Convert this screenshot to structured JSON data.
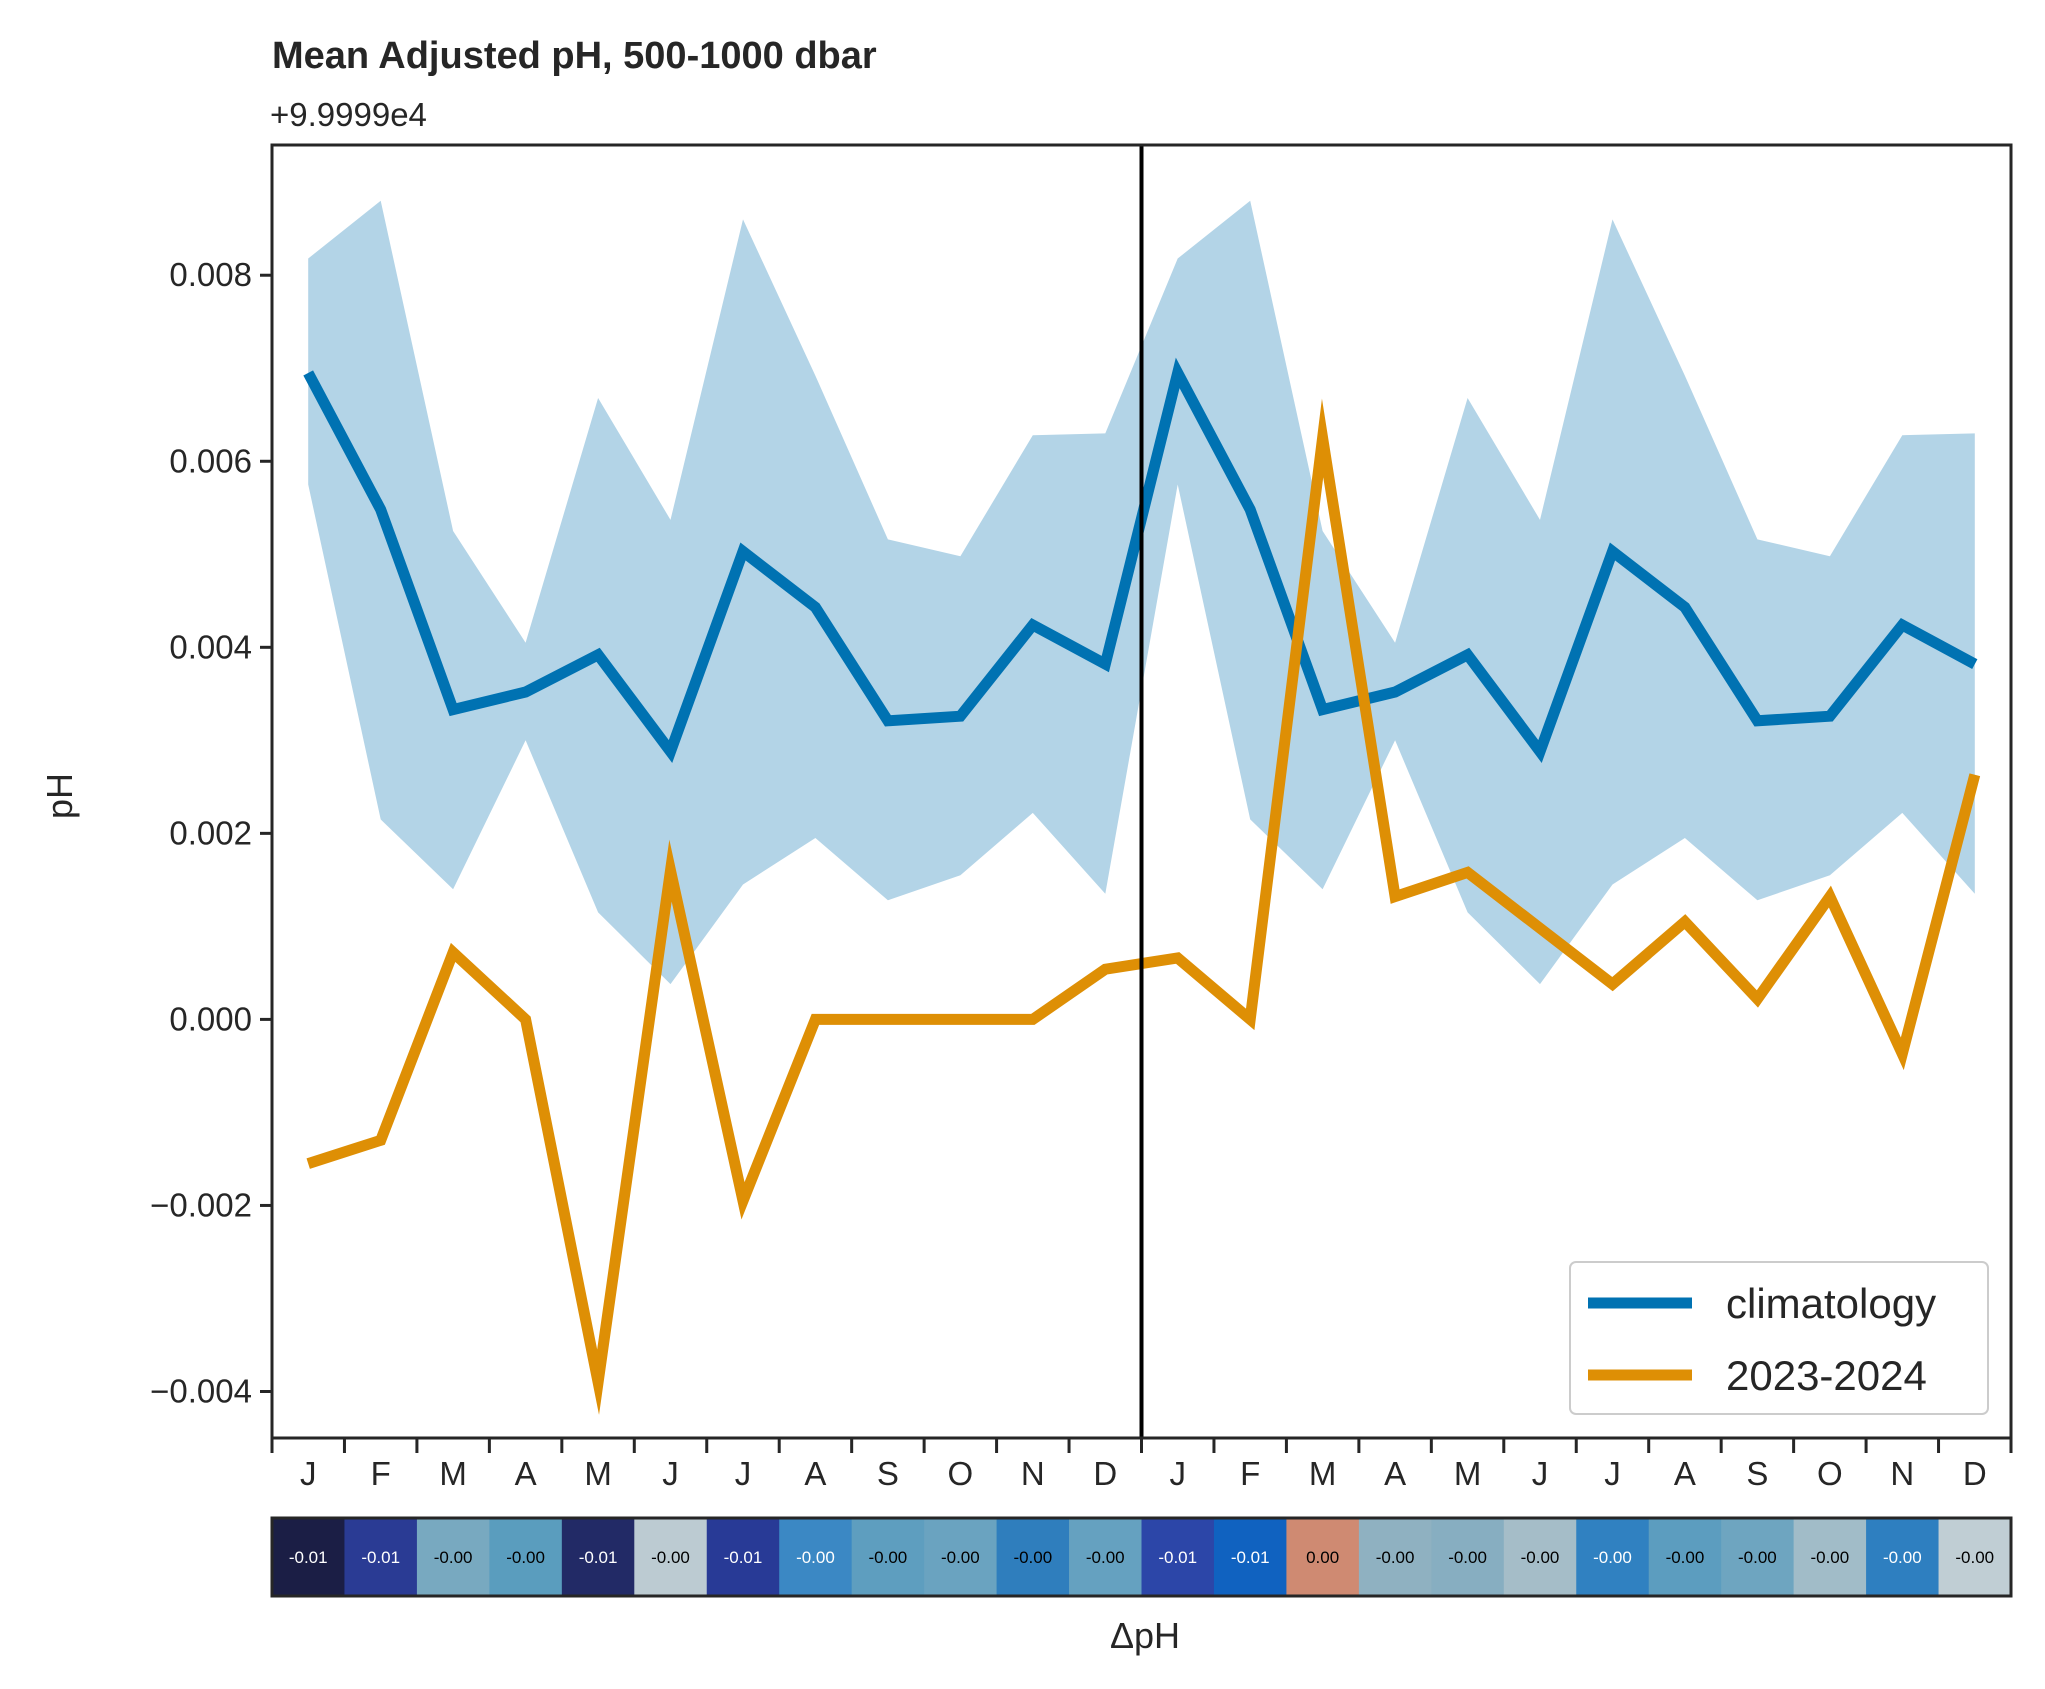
{
  "chart_data": {
    "type": "line",
    "title": "Mean Adjusted pH, 500-1000 dbar",
    "y_offset_label": "+9.9999e4",
    "ylabel": "pH",
    "xlabel": "ΔpH",
    "ylim": [
      -0.0045,
      0.0094
    ],
    "yticks": [
      -0.004,
      -0.002,
      0.0,
      0.002,
      0.004,
      0.006,
      0.008
    ],
    "ytick_labels": [
      "−0.004",
      "−0.002",
      "0.000",
      "0.002",
      "0.004",
      "0.006",
      "0.008"
    ],
    "categories": [
      "J",
      "F",
      "M",
      "A",
      "M",
      "J",
      "J",
      "A",
      "S",
      "O",
      "N",
      "D",
      "J",
      "F",
      "M",
      "A",
      "M",
      "J",
      "J",
      "A",
      "S",
      "O",
      "N",
      "D"
    ],
    "series": [
      {
        "name": "climatology",
        "color": "#0072b2",
        "values": [
          0.00695,
          0.00548,
          0.00333,
          0.00352,
          0.00392,
          0.00288,
          0.00503,
          0.00443,
          0.00321,
          0.00326,
          0.00424,
          0.00382,
          0.00695,
          0.00548,
          0.00333,
          0.00352,
          0.00392,
          0.00288,
          0.00503,
          0.00443,
          0.00321,
          0.00326,
          0.00424,
          0.00382
        ]
      },
      {
        "name": "2023-2024",
        "color": "#de8f05",
        "values": [
          -0.00155,
          -0.0013,
          0.00072,
          0.0,
          -0.0039,
          0.0016,
          -0.00195,
          0.0,
          0.0,
          0.0,
          0.0,
          0.00054,
          0.00066,
          0.0,
          0.00625,
          0.00132,
          0.00158,
          0.00098,
          0.00038,
          0.00105,
          0.00022,
          0.00132,
          -0.00037,
          0.00263
        ]
      }
    ],
    "band": {
      "color": "#b3d4e7",
      "upper": [
        0.00818,
        0.0088,
        0.00525,
        0.00405,
        0.00668,
        0.00537,
        0.0086,
        0.00692,
        0.00516,
        0.00498,
        0.00628,
        0.0063,
        0.00818,
        0.0088,
        0.00525,
        0.00405,
        0.00668,
        0.00537,
        0.0086,
        0.00692,
        0.00516,
        0.00498,
        0.00628,
        0.0063
      ],
      "lower": [
        0.00575,
        0.00215,
        0.0014,
        0.003,
        0.00115,
        0.00038,
        0.00145,
        0.00195,
        0.00128,
        0.00155,
        0.00222,
        0.00135,
        0.00575,
        0.00215,
        0.0014,
        0.003,
        0.00115,
        0.00038,
        0.00145,
        0.00195,
        0.00128,
        0.00155,
        0.00222,
        0.00135
      ]
    },
    "vline_after_index": 11,
    "legend": {
      "placement": "lower-right",
      "entries": [
        "climatology",
        "2023-2024"
      ]
    },
    "grid": false,
    "delta_strip": {
      "labels": [
        "-0.01",
        "-0.01",
        "-0.00",
        "-0.00",
        "-0.01",
        "-0.00",
        "-0.01",
        "-0.00",
        "-0.00",
        "-0.00",
        "-0.00",
        "-0.00",
        "-0.01",
        "-0.01",
        "0.00",
        "-0.00",
        "-0.00",
        "-0.00",
        "-0.00",
        "-0.00",
        "-0.00",
        "-0.00",
        "-0.00",
        "-0.00"
      ],
      "colors": [
        "#1b1e45",
        "#2a3b94",
        "#78a9c0",
        "#5a9dbe",
        "#222a66",
        "#bccbd2",
        "#283a96",
        "#3b88c4",
        "#5e9ebf",
        "#6aa3c0",
        "#2f7ebd",
        "#65a1c0",
        "#2c46a8",
        "#1062c0",
        "#cf8a72",
        "#8fb1c1",
        "#87aec1",
        "#a5bdc8",
        "#3081c1",
        "#5c9dbf",
        "#6ea5c0",
        "#a1bcc8",
        "#2e7fc0",
        "#c0ced4"
      ],
      "text_colors": [
        "#ffffff",
        "#ffffff",
        "#000000",
        "#000000",
        "#ffffff",
        "#000000",
        "#ffffff",
        "#ffffff",
        "#000000",
        "#000000",
        "#000000",
        "#000000",
        "#ffffff",
        "#ffffff",
        "#000000",
        "#000000",
        "#000000",
        "#000000",
        "#ffffff",
        "#000000",
        "#000000",
        "#000000",
        "#ffffff",
        "#000000"
      ]
    }
  }
}
